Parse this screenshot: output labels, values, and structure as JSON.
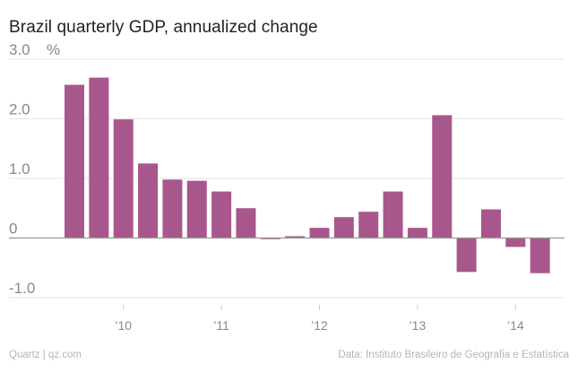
{
  "chart_data": {
    "type": "bar",
    "title": "Brazil quarterly GDP, annualized change",
    "y_unit_label": "%",
    "ylim": [
      -1.0,
      3.0
    ],
    "yticks": [
      {
        "value": 3.0,
        "label": "3.0"
      },
      {
        "value": 2.0,
        "label": "2.0"
      },
      {
        "value": 1.0,
        "label": "1.0"
      },
      {
        "value": 0,
        "label": "0"
      },
      {
        "value": -1.0,
        "label": "-1.0"
      }
    ],
    "grid": true,
    "bar_color": "#a8578c",
    "categories": [
      "2009 Q3",
      "2009 Q4",
      "2010 Q1",
      "2010 Q2",
      "2010 Q3",
      "2010 Q4",
      "2011 Q1",
      "2011 Q2",
      "2011 Q3",
      "2011 Q4",
      "2012 Q1",
      "2012 Q2",
      "2012 Q3",
      "2012 Q4",
      "2013 Q1",
      "2013 Q2",
      "2013 Q3",
      "2013 Q4",
      "2014 Q1",
      "2014 Q2",
      "2014 Q3"
    ],
    "values": [
      2.57,
      2.69,
      1.99,
      1.25,
      0.98,
      0.96,
      0.78,
      0.5,
      -0.02,
      0.03,
      0.17,
      0.35,
      0.44,
      0.78,
      0.17,
      2.06,
      -0.57,
      0.48,
      -0.15,
      -0.59,
      0
    ],
    "xticks": [
      {
        "category": "2010 Q1",
        "label": "’10"
      },
      {
        "category": "2011 Q1",
        "label": "’11"
      },
      {
        "category": "2012 Q1",
        "label": "’12"
      },
      {
        "category": "2013 Q1",
        "label": "’13"
      },
      {
        "category": "2014 Q1",
        "label": "’14"
      }
    ]
  },
  "footer": {
    "left": "Quartz | qz.com",
    "right": "Data: Instituto Brasileiro de Geografia e Estatística"
  }
}
